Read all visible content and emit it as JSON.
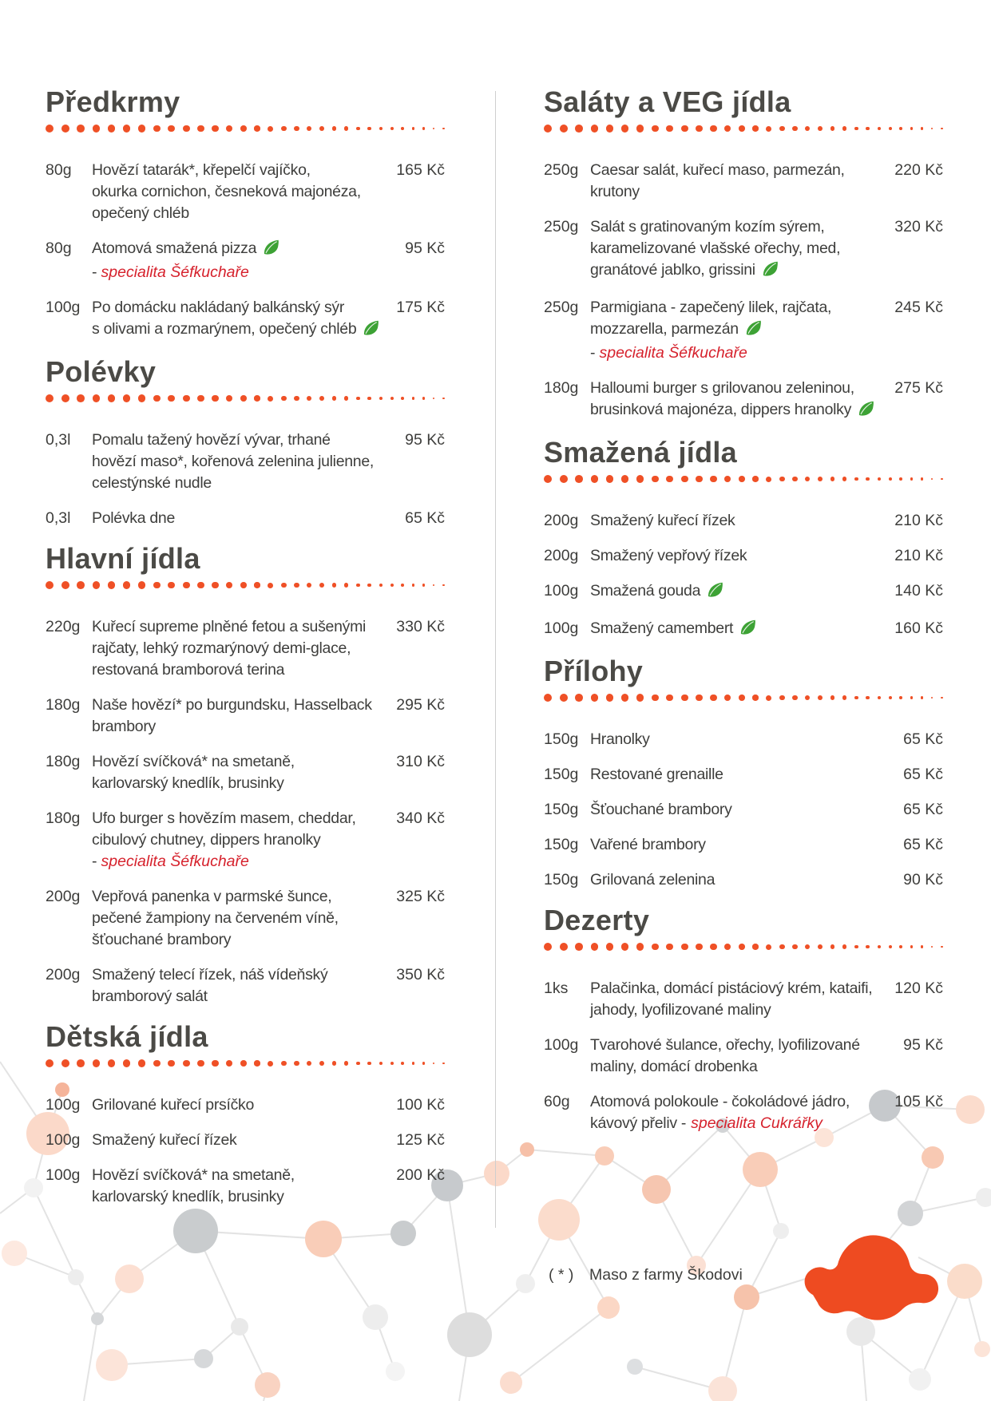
{
  "meta": {
    "note_dash": "-"
  },
  "palette": {
    "accent_orange": "#ef5026",
    "specialty_red": "#d6222d",
    "leaf_green": "#3da235",
    "text": "#3e3e3c",
    "title": "#4b4a46",
    "divider": "#cecece"
  },
  "menu": {
    "left_sections": [
      {
        "title": "Předkrmy",
        "items": [
          {
            "qty": "80g",
            "desc": "Hovězí tatarák*, křepelčí vajíčko,\nokurka cornichon, česneková majonéza,\nopečený chléb",
            "price": "165 Kč"
          },
          {
            "qty": "80g",
            "desc": "Atomová smažená pizza",
            "leaf": true,
            "note": "specialita Šéfkuchaře",
            "price": "95 Kč"
          },
          {
            "qty": "100g",
            "desc": "Po domácku nakládaný balkánský sýr\ns olivami a rozmarýnem, opečený chléb",
            "leaf": true,
            "price": "175 Kč"
          }
        ]
      },
      {
        "title": "Polévky",
        "items": [
          {
            "qty": "0,3l",
            "desc": "Pomalu tažený hovězí vývar, trhané\nhovězí maso*, kořenová zelenina julienne,\ncelestýnské nudle",
            "price": "95 Kč"
          },
          {
            "qty": "0,3l",
            "desc": "Polévka dne",
            "price": "65 Kč"
          }
        ]
      },
      {
        "title": "Hlavní jídla",
        "items": [
          {
            "qty": "220g",
            "desc": "Kuřecí supreme plněné fetou a sušenými\nrajčaty, lehký rozmarýnový demi-glace,\nrestovaná bramborová terina",
            "price": "330 Kč"
          },
          {
            "qty": "180g",
            "desc": "Naše hovězí* po burgundsku, Hasselback\nbrambory",
            "price": "295 Kč"
          },
          {
            "qty": "180g",
            "desc": "Hovězí svíčková* na smetaně,\nkarlovarský knedlík, brusinky",
            "price": "310 Kč"
          },
          {
            "qty": "180g",
            "desc": "Ufo burger s hovězím masem, cheddar,\ncibulový chutney, dippers hranolky",
            "note": "specialita Šéfkuchaře",
            "price": "340 Kč"
          },
          {
            "qty": "200g",
            "desc": "Vepřová panenka v parmské šunce,\npečené žampiony na červeném víně,\nšťouchané brambory",
            "price": "325 Kč"
          },
          {
            "qty": "200g",
            "desc": "Smažený telecí řízek, náš vídeňský\nbramborový salát",
            "price": "350 Kč"
          }
        ]
      },
      {
        "title": "Dětská jídla",
        "items": [
          {
            "qty": "100g",
            "desc": "Grilované kuřecí prsíčko",
            "price": "100 Kč"
          },
          {
            "qty": "100g",
            "desc": "Smažený kuřecí řízek",
            "price": "125 Kč"
          },
          {
            "qty": "100g",
            "desc": "Hovězí svíčková* na smetaně,\nkarlovarský knedlík, brusinky",
            "price": "200 Kč"
          }
        ]
      }
    ],
    "right_sections": [
      {
        "title": "Saláty a VEG jídla",
        "items": [
          {
            "qty": "250g",
            "desc": "Caesar salát, kuřecí maso, parmezán,\nkrutony",
            "price": "220 Kč"
          },
          {
            "qty": "250g",
            "desc": "Salát s gratinovaným kozím sýrem,\nkaramelizované vlašské ořechy, med,\ngranátové jablko, grissini",
            "leaf": true,
            "price": "320 Kč"
          },
          {
            "qty": "250g",
            "desc": "Parmigiana - zapečený lilek, rajčata,\nmozzarella, parmezán",
            "leaf": true,
            "note": "specialita Šéfkuchaře",
            "price": "245 Kč"
          },
          {
            "qty": "180g",
            "desc": "Halloumi burger s grilovanou zeleninou,\nbrusinková majonéza, dippers hranolky",
            "leaf": true,
            "price": "275 Kč"
          }
        ]
      },
      {
        "title": "Smažená jídla",
        "items": [
          {
            "qty": "200g",
            "desc": "Smažený kuřecí řízek",
            "price": "210 Kč"
          },
          {
            "qty": "200g",
            "desc": "Smažený vepřový řízek",
            "price": "210 Kč"
          },
          {
            "qty": "100g",
            "desc": "Smažená gouda",
            "leaf": true,
            "price": "140 Kč"
          },
          {
            "qty": "100g",
            "desc": "Smažený camembert",
            "leaf": true,
            "price": "160 Kč"
          }
        ]
      },
      {
        "title": "Přílohy",
        "items": [
          {
            "qty": "150g",
            "desc": "Hranolky",
            "price": "65 Kč"
          },
          {
            "qty": "150g",
            "desc": "Restované grenaille",
            "price": "65 Kč"
          },
          {
            "qty": "150g",
            "desc": "Šťouchané brambory",
            "price": "65 Kč"
          },
          {
            "qty": "150g",
            "desc": "Vařené brambory",
            "price": "65 Kč"
          },
          {
            "qty": "150g",
            "desc": "Grilovaná zelenina",
            "price": "90 Kč"
          }
        ]
      },
      {
        "title": "Dezerty",
        "items": [
          {
            "qty": "1ks",
            "desc": "Palačinka, domácí pistáciový krém, kataifi,\njahody, lyofilizované maliny",
            "price": "120 Kč"
          },
          {
            "qty": "100g",
            "desc": "Tvarohové šulance, ořechy, lyofilizované\nmaliny, domácí drobenka",
            "price": "95 Kč"
          },
          {
            "qty": "60g",
            "desc": "Atomová polokoule - čokoládové jádro,\nkávový přeliv -",
            "note_inline": "specialita Cukrářky",
            "price": "105 Kč"
          }
        ]
      }
    ]
  },
  "footer": {
    "marker": "( * )",
    "text": "Maso z farmy Škodovi"
  }
}
